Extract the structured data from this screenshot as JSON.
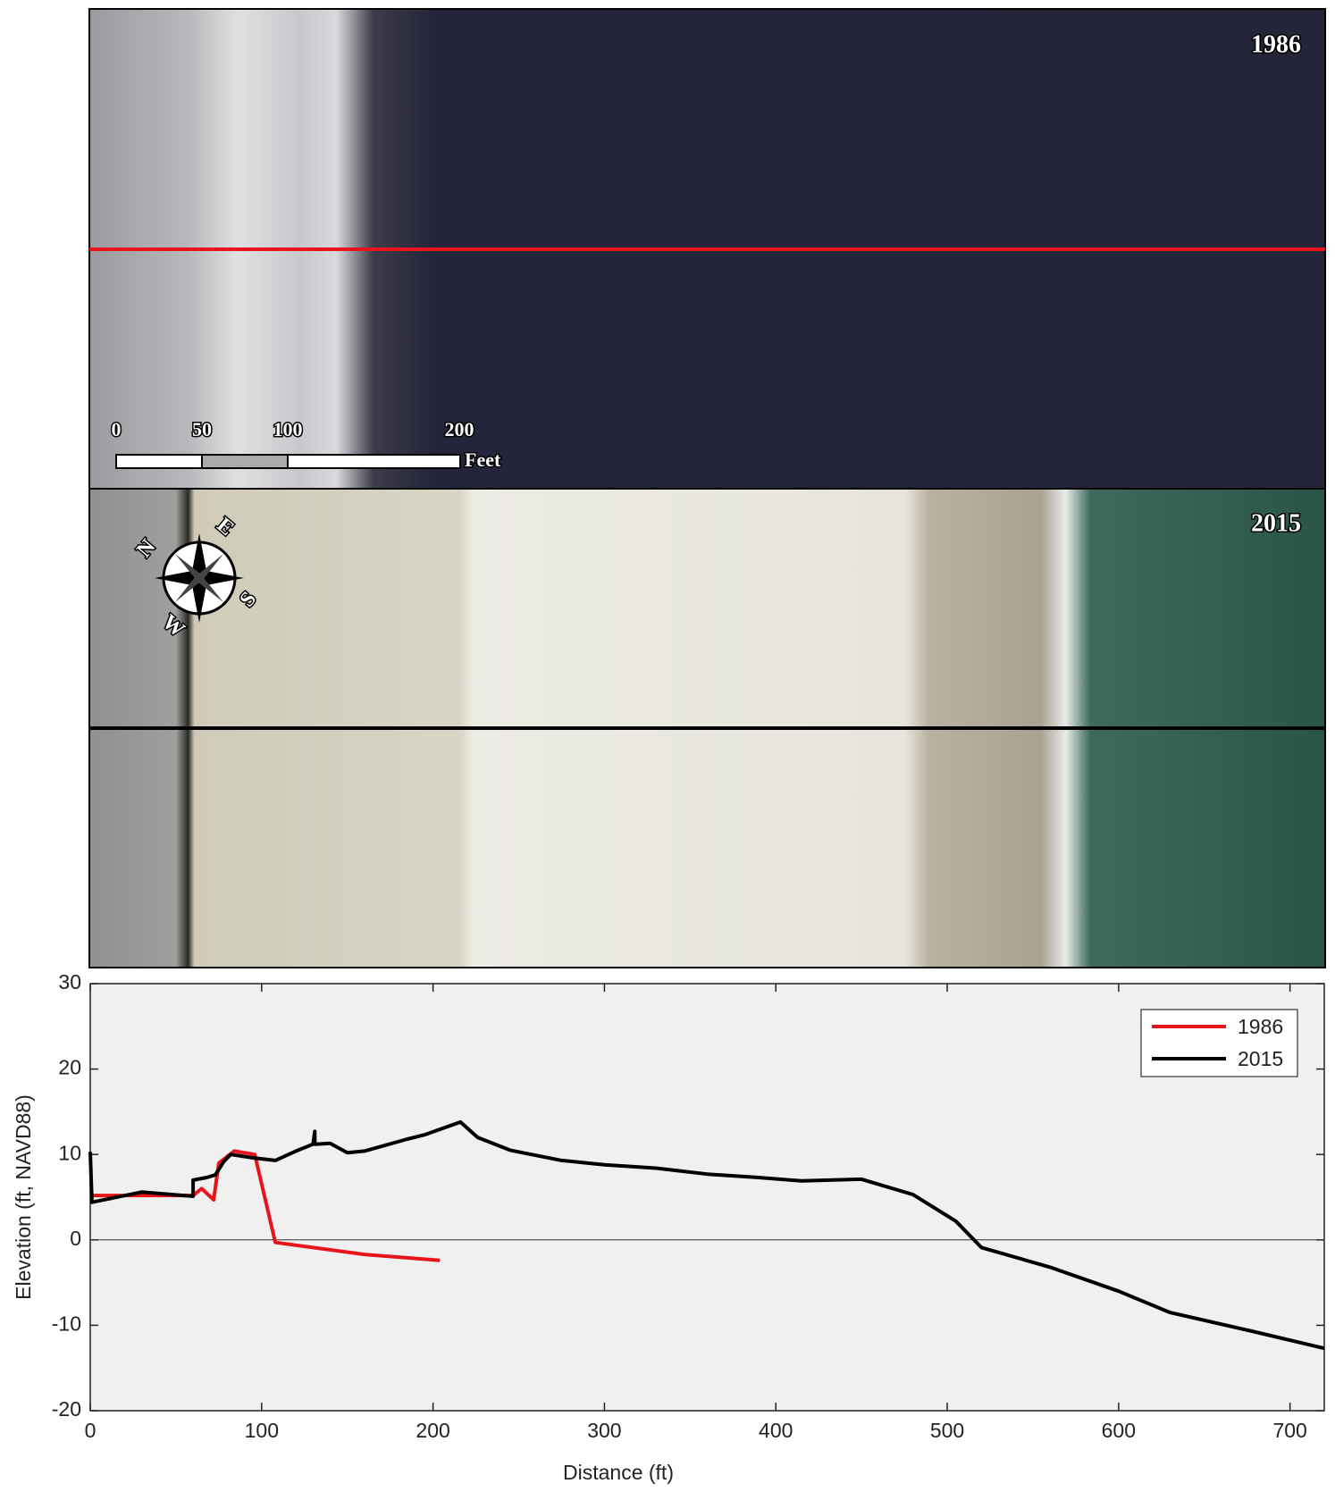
{
  "panels": [
    {
      "year": "1986"
    },
    {
      "year": "2015"
    }
  ],
  "scale_bar": {
    "labels": [
      "0",
      "50",
      "100",
      "200"
    ],
    "unit": "Feet"
  },
  "compass": {
    "n": "N",
    "e": "E",
    "s": "S",
    "w": "W"
  },
  "chart_data": {
    "type": "line",
    "xlabel": "Distance (ft)",
    "ylabel": "Elevation (ft, NAVD88)",
    "xlim": [
      0,
      720
    ],
    "ylim": [
      -20,
      30
    ],
    "xticks": [
      0,
      100,
      200,
      300,
      400,
      500,
      600,
      700
    ],
    "yticks": [
      -20,
      -10,
      0,
      10,
      20,
      30
    ],
    "zero_line": true,
    "legend": "upper right",
    "series": [
      {
        "name": "1986",
        "color": "#e8141b",
        "x": [
          0,
          60,
          65,
          72,
          75,
          84,
          96,
          108,
          130,
          160,
          204
        ],
        "values": [
          5.2,
          5.2,
          6.0,
          4.7,
          9.0,
          10.4,
          10.0,
          -0.3,
          -0.9,
          -1.7,
          -2.4
        ]
      },
      {
        "name": "2015",
        "color": "#000000",
        "x": [
          0,
          1,
          30,
          60,
          60,
          68,
          73,
          78,
          82,
          95,
          108,
          120,
          130,
          131,
          131,
          140,
          150,
          160,
          185,
          195,
          216,
          226,
          245,
          275,
          300,
          330,
          360,
          390,
          415,
          450,
          480,
          505,
          520,
          560,
          600,
          630,
          680,
          720
        ],
        "values": [
          10.3,
          4.4,
          5.6,
          5.1,
          7.0,
          7.3,
          7.6,
          9.2,
          10.0,
          9.6,
          9.3,
          10.4,
          11.2,
          12.7,
          11.2,
          11.3,
          10.2,
          10.4,
          11.8,
          12.3,
          13.8,
          12.0,
          10.5,
          9.3,
          8.8,
          8.4,
          7.7,
          7.3,
          6.9,
          7.1,
          5.3,
          2.2,
          -0.9,
          -3.2,
          -6.0,
          -8.5,
          -10.8,
          -12.7
        ]
      }
    ]
  }
}
